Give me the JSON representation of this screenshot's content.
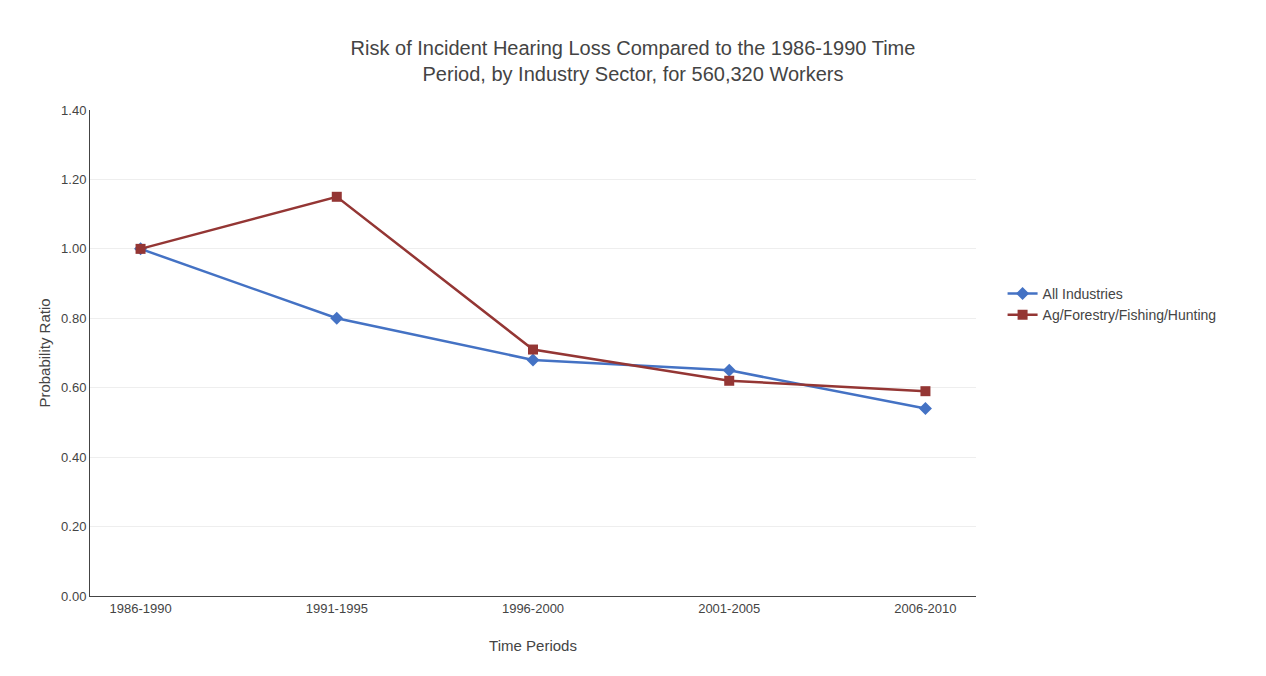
{
  "chart_data": {
    "type": "line",
    "title": "Risk of Incident Hearing Loss Compared to the 1986-1990 Time\nPeriod, by Industry Sector, for 560,320 Workers",
    "x_label": "Time Periods",
    "y_label": "Probability Ratio",
    "categories": [
      "1986-1990",
      "1991-1995",
      "1996-2000",
      "2001-2005",
      "2006-2010"
    ],
    "series": [
      {
        "name": "All Industries",
        "color": "#4472C4",
        "marker": "diamond",
        "values": [
          1.0,
          0.8,
          0.68,
          0.65,
          0.54
        ]
      },
      {
        "name": "Ag/Forestry/Fishing/Hunting",
        "color": "#943634",
        "marker": "square",
        "values": [
          1.0,
          1.15,
          0.71,
          0.62,
          0.59
        ]
      }
    ],
    "ylim": [
      0.0,
      1.4
    ],
    "yticks": [
      {
        "value": 0.0,
        "label": "0.00"
      },
      {
        "value": 0.2,
        "label": "0.20"
      },
      {
        "value": 0.4,
        "label": "0.40"
      },
      {
        "value": 0.6,
        "label": "0.60"
      },
      {
        "value": 0.8,
        "label": "0.80"
      },
      {
        "value": 1.0,
        "label": "1.00"
      },
      {
        "value": 1.2,
        "label": "1.20"
      },
      {
        "value": 1.4,
        "label": "1.40"
      }
    ],
    "grid": true,
    "legend": "right"
  }
}
